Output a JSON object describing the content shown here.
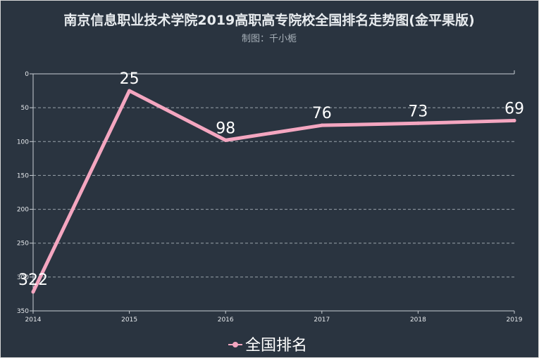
{
  "chart_data": {
    "type": "line",
    "title": "南京信息职业技术学院2019高职高专院校全国排名走势图(金平果版)",
    "subtitle": "制图：千小栀",
    "x": [
      "2014",
      "2015",
      "2016",
      "2017",
      "2018",
      "2019"
    ],
    "series": [
      {
        "name": "全国排名",
        "values": [
          322,
          25,
          98,
          76,
          73,
          69
        ]
      }
    ],
    "data_labels": [
      "322",
      "25",
      "98",
      "76",
      "73",
      "69"
    ],
    "yticks": [
      "0",
      "50",
      "100",
      "150",
      "200",
      "250",
      "300",
      "350"
    ],
    "ylim": [
      0,
      350
    ],
    "y_inverted": true,
    "grid": "horizontal dashed",
    "legend_position": "bottom-center",
    "colors": {
      "background": "#2a3440",
      "line": "#f4a6c0",
      "grid": "#9aa3ab",
      "axis": "#c8ced3",
      "text": "#ffffff"
    }
  }
}
